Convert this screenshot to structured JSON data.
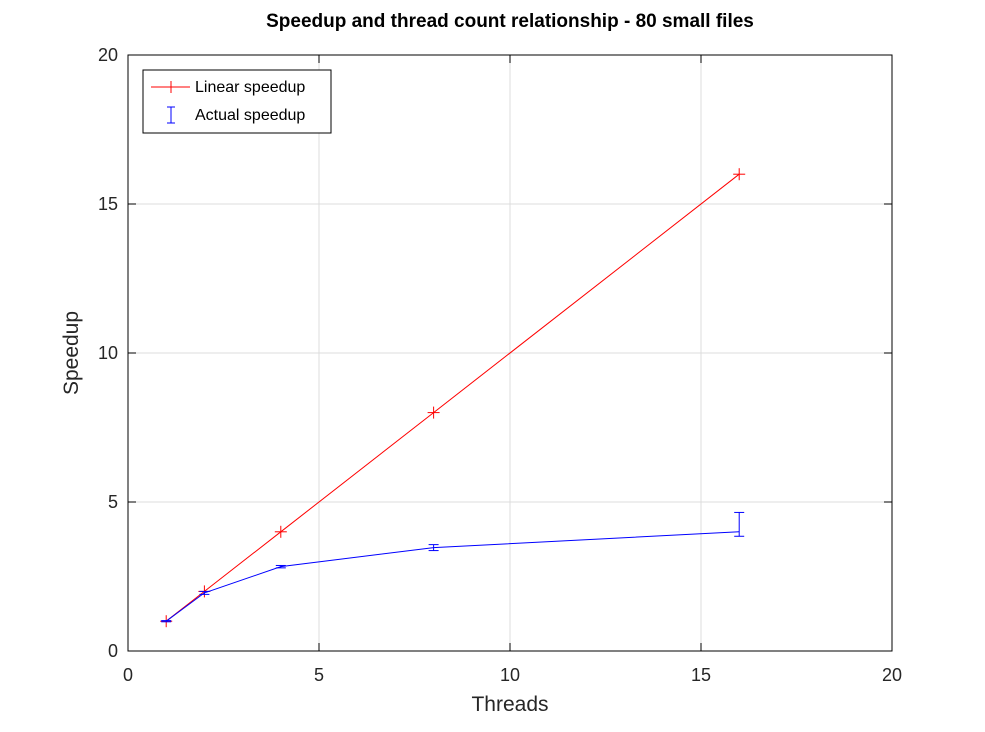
{
  "chart_data": {
    "type": "line",
    "title": "Speedup and thread count relationship - 80 small files",
    "xlabel": "Threads",
    "ylabel": "Speedup",
    "xlim": [
      0,
      20
    ],
    "ylim": [
      0,
      20
    ],
    "xticks": [
      0,
      5,
      10,
      15,
      20
    ],
    "yticks": [
      0,
      5,
      10,
      15,
      20
    ],
    "grid": true,
    "legend_position": "top-left",
    "series": [
      {
        "name": "Linear speedup",
        "color": "#ff0000",
        "marker": "plus",
        "x": [
          1,
          2,
          4,
          8,
          16
        ],
        "y": [
          1,
          2,
          4,
          8,
          16
        ]
      },
      {
        "name": "Actual speedup",
        "color": "#0000ff",
        "marker": "errorbar",
        "x": [
          1,
          2,
          4,
          8,
          16
        ],
        "y": [
          1,
          1.95,
          2.83,
          3.47,
          4.0
        ],
        "err_low": [
          0.02,
          0.05,
          0.04,
          0.1,
          0.15
        ],
        "err_high": [
          0.02,
          0.05,
          0.04,
          0.1,
          0.65
        ]
      }
    ]
  }
}
